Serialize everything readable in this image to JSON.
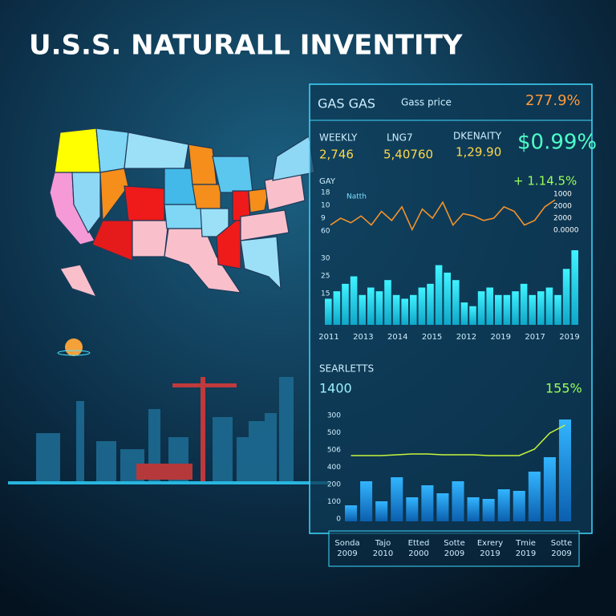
{
  "title": "U.S.S. NATURALL INVENTITY",
  "panel": {
    "header": {
      "left": "GAS GAS",
      "middle": "Gass price",
      "right": "277.9%"
    },
    "stats": [
      {
        "label": "WEEKLY",
        "value": "2,746"
      },
      {
        "label": "LNG7",
        "value": "5,40760"
      },
      {
        "label": "DKENAITY",
        "value": "1,29.90"
      }
    ],
    "big_value": "$0.99%",
    "line_chart": {
      "label": "GAY",
      "legend": "Natth",
      "change": "+ 1.14.5%",
      "y_labels": [
        "18",
        "10",
        "9",
        "60"
      ],
      "right_labels": [
        "1000",
        "2000",
        "2000",
        "0.0000"
      ],
      "ylim": [
        0,
        100
      ],
      "values": [
        20,
        35,
        25,
        40,
        20,
        50,
        30,
        60,
        10,
        55,
        35,
        70,
        20,
        45,
        40,
        30,
        35,
        60,
        50,
        20,
        30,
        60,
        75
      ]
    },
    "bar_chart_1": {
      "y_labels": [
        "30",
        "25",
        "15"
      ],
      "x_labels": [
        "2011",
        "2013",
        "2014",
        "2015",
        "2012",
        "2019",
        "2017",
        "2019"
      ],
      "ylim": [
        0,
        100
      ],
      "values": [
        35,
        45,
        55,
        65,
        40,
        50,
        45,
        60,
        40,
        35,
        40,
        50,
        55,
        80,
        70,
        60,
        30,
        25,
        45,
        50,
        40,
        40,
        45,
        55,
        40,
        45,
        50,
        40,
        75,
        100
      ]
    },
    "section": {
      "label": "SEARLETTS",
      "value": "1400",
      "percent": "155%"
    },
    "bar_chart_2": {
      "y_labels": [
        "300",
        "500",
        "506",
        "400",
        "200",
        "100",
        "0"
      ],
      "ylim": [
        0,
        130
      ],
      "values": [
        20,
        50,
        25,
        55,
        30,
        45,
        35,
        50,
        30,
        28,
        40,
        38,
        62,
        80,
        127
      ],
      "line": [
        82,
        82,
        82,
        83,
        84,
        84,
        83,
        83,
        83,
        82,
        82,
        82,
        90,
        110,
        120
      ]
    },
    "bottom_labels": [
      {
        "line1": "Sonda",
        "line2": "2009"
      },
      {
        "line1": "Tajo",
        "line2": "2010"
      },
      {
        "line1": "Etted",
        "line2": "2000"
      },
      {
        "line1": "Sotte",
        "line2": "2009"
      },
      {
        "line1": "Exrery",
        "line2": "2019"
      },
      {
        "line1": "Tmie",
        "line2": "2019"
      },
      {
        "line1": "Sotte",
        "line2": "2009"
      }
    ]
  }
}
